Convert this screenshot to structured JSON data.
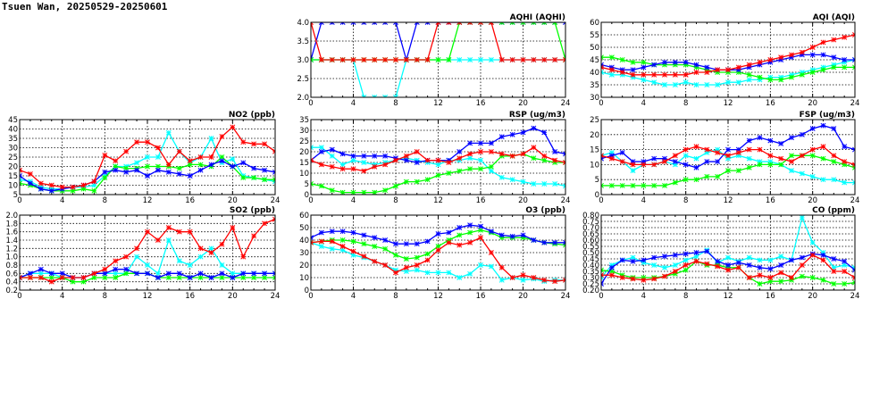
{
  "page": {
    "title": "Tsuen Wan, 20250529-20250601"
  },
  "colors": {
    "red": "#ff0000",
    "blue": "#0000ff",
    "green": "#00ff00",
    "cyan": "#00ffff",
    "grid": "#000000"
  },
  "x_ticks": [
    "0",
    "4",
    "8",
    "12",
    "16",
    "20",
    "24"
  ],
  "chart_data": [
    {
      "id": "aqhi",
      "type": "line",
      "title": "AQHI (AQHI)",
      "xlim": [
        0,
        24
      ],
      "ylim": [
        2.0,
        4.0
      ],
      "yticks": [
        "2.0",
        "2.5",
        "3.0",
        "3.5",
        "4.0"
      ],
      "ytick_values": [
        2.0,
        2.5,
        3.0,
        3.5,
        4.0
      ],
      "grid": true,
      "series": [
        {
          "color": "#00ffff",
          "values": [
            3,
            3,
            3,
            3,
            3,
            2,
            2,
            2,
            2,
            3,
            3,
            3,
            3,
            3,
            3,
            3,
            3,
            3,
            3,
            3,
            3,
            3,
            3,
            3,
            3
          ]
        },
        {
          "color": "#0000ff",
          "values": [
            3,
            4,
            4,
            4,
            4,
            4,
            4,
            4,
            4,
            3,
            4,
            4,
            4,
            4,
            4,
            4,
            4,
            4,
            4,
            4,
            4,
            4,
            4,
            4,
            4
          ]
        },
        {
          "color": "#00ff00",
          "values": [
            3,
            3,
            3,
            3,
            3,
            3,
            3,
            3,
            3,
            3,
            3,
            3,
            3,
            3,
            4,
            4,
            4,
            4,
            4,
            4,
            4,
            4,
            4,
            4,
            3
          ]
        },
        {
          "color": "#ff0000",
          "values": [
            4,
            3,
            3,
            3,
            3,
            3,
            3,
            3,
            3,
            3,
            3,
            3,
            4,
            4,
            4,
            4,
            4,
            4,
            3,
            3,
            3,
            3,
            3,
            3,
            3
          ]
        }
      ]
    },
    {
      "id": "aqi",
      "type": "line",
      "title": "AQI (AQI)",
      "xlim": [
        0,
        24
      ],
      "ylim": [
        30,
        60
      ],
      "yticks": [
        "30",
        "35",
        "40",
        "45",
        "50",
        "55",
        "60"
      ],
      "ytick_values": [
        30,
        35,
        40,
        45,
        50,
        55,
        60
      ],
      "grid": true,
      "series": [
        {
          "color": "#00ffff",
          "values": [
            40,
            39,
            39,
            38,
            37,
            36,
            35,
            35,
            36,
            35,
            35,
            35,
            36,
            36,
            37,
            37,
            38,
            38,
            39,
            40,
            41,
            42,
            43,
            44,
            45
          ]
        },
        {
          "color": "#00ff00",
          "values": [
            46,
            46,
            45,
            44,
            44,
            43,
            43,
            43,
            43,
            42,
            41,
            40,
            40,
            40,
            39,
            38,
            37,
            37,
            38,
            39,
            40,
            41,
            42,
            42,
            42
          ]
        },
        {
          "color": "#0000ff",
          "values": [
            43,
            42,
            41,
            41,
            42,
            43,
            44,
            44,
            44,
            43,
            42,
            41,
            41,
            41,
            42,
            43,
            44,
            45,
            46,
            47,
            47,
            47,
            46,
            45,
            45
          ]
        },
        {
          "color": "#ff0000",
          "values": [
            42,
            41,
            40,
            39,
            39,
            39,
            39,
            39,
            39,
            40,
            40,
            41,
            41,
            42,
            43,
            44,
            45,
            46,
            47,
            48,
            50,
            52,
            53,
            54,
            55
          ]
        }
      ]
    },
    {
      "id": "no2",
      "type": "line",
      "title": "NO2 (ppb)",
      "xlim": [
        0,
        24
      ],
      "ylim": [
        5,
        45
      ],
      "yticks": [
        "5",
        "10",
        "15",
        "20",
        "25",
        "30",
        "35",
        "40",
        "45"
      ],
      "ytick_values": [
        5,
        10,
        15,
        20,
        25,
        30,
        35,
        40,
        45
      ],
      "grid": true,
      "series": [
        {
          "color": "#00ffff",
          "values": [
            13,
            12,
            9,
            8,
            8,
            9,
            9,
            10,
            15,
            20,
            20,
            22,
            25,
            25,
            38,
            28,
            22,
            25,
            35,
            22,
            24,
            15,
            14,
            13,
            12
          ]
        },
        {
          "color": "#00ff00",
          "values": [
            11,
            10,
            8,
            7,
            7,
            7,
            8,
            7,
            14,
            20,
            19,
            19,
            20,
            20,
            20,
            19,
            21,
            21,
            20,
            25,
            20,
            14,
            14,
            13,
            13
          ]
        },
        {
          "color": "#0000ff",
          "values": [
            15,
            11,
            8,
            7,
            8,
            9,
            10,
            12,
            17,
            18,
            17,
            18,
            15,
            18,
            17,
            16,
            15,
            18,
            21,
            23,
            20,
            22,
            19,
            18,
            17
          ]
        },
        {
          "color": "#ff0000",
          "values": [
            18,
            16,
            11,
            10,
            9,
            9,
            10,
            12,
            26,
            23,
            28,
            33,
            33,
            30,
            21,
            28,
            23,
            25,
            25,
            36,
            41,
            33,
            32,
            32,
            28
          ]
        }
      ]
    },
    {
      "id": "rsp",
      "type": "line",
      "title": "RSP (ug/m3)",
      "xlim": [
        0,
        24
      ],
      "ylim": [
        0,
        35
      ],
      "yticks": [
        "0",
        "5",
        "10",
        "15",
        "20",
        "25",
        "30",
        "35"
      ],
      "ytick_values": [
        0,
        5,
        10,
        15,
        20,
        25,
        30,
        35
      ],
      "grid": true,
      "series": [
        {
          "color": "#00ffff",
          "values": [
            22,
            22,
            18,
            14,
            16,
            15,
            14,
            15,
            16,
            17,
            16,
            15,
            14,
            16,
            16,
            17,
            16,
            11,
            8,
            7,
            6,
            5,
            5,
            5,
            4
          ]
        },
        {
          "color": "#00ff00",
          "values": [
            5,
            4,
            2,
            1,
            1,
            1,
            1,
            2,
            4,
            6,
            6,
            7,
            9,
            10,
            11,
            12,
            12,
            13,
            18,
            18,
            19,
            17,
            16,
            15,
            15
          ]
        },
        {
          "color": "#0000ff",
          "values": [
            16,
            20,
            21,
            19,
            18,
            18,
            18,
            18,
            17,
            16,
            15,
            16,
            16,
            16,
            20,
            24,
            24,
            24,
            27,
            28,
            29,
            31,
            29,
            20,
            19
          ]
        },
        {
          "color": "#ff0000",
          "values": [
            16,
            14,
            13,
            12,
            12,
            11,
            13,
            14,
            16,
            18,
            20,
            16,
            16,
            15,
            17,
            19,
            20,
            20,
            19,
            18,
            19,
            22,
            18,
            16,
            15
          ]
        }
      ]
    },
    {
      "id": "fsp",
      "type": "line",
      "title": "FSP (ug/m3)",
      "xlim": [
        0,
        24
      ],
      "ylim": [
        0,
        25
      ],
      "yticks": [
        "0",
        "5",
        "10",
        "15",
        "20",
        "25"
      ],
      "ytick_values": [
        0,
        5,
        10,
        15,
        20,
        25
      ],
      "grid": true,
      "series": [
        {
          "color": "#00ffff",
          "values": [
            13,
            14,
            11,
            8,
            10,
            10,
            11,
            10,
            13,
            12,
            14,
            15,
            12,
            13,
            12,
            11,
            11,
            10,
            8,
            7,
            6,
            5,
            5,
            4,
            4
          ]
        },
        {
          "color": "#00ff00",
          "values": [
            3,
            3,
            3,
            3,
            3,
            3,
            3,
            4,
            5,
            5,
            6,
            6,
            8,
            8,
            9,
            10,
            10,
            10,
            13,
            13,
            13,
            12,
            11,
            10,
            9
          ]
        },
        {
          "color": "#0000ff",
          "values": [
            12,
            13,
            14,
            11,
            11,
            12,
            12,
            11,
            10,
            9,
            11,
            11,
            15,
            15,
            18,
            19,
            18,
            17,
            19,
            20,
            22,
            23,
            22,
            16,
            15
          ]
        },
        {
          "color": "#ff0000",
          "values": [
            13,
            12,
            11,
            10,
            10,
            10,
            11,
            13,
            15,
            16,
            15,
            14,
            13,
            14,
            15,
            15,
            13,
            12,
            11,
            13,
            15,
            16,
            13,
            11,
            10
          ]
        }
      ]
    },
    {
      "id": "so2",
      "type": "line",
      "title": "SO2 (ppb)",
      "xlim": [
        0,
        24
      ],
      "ylim": [
        0.2,
        2.0
      ],
      "yticks": [
        "0.2",
        "0.4",
        "0.6",
        "0.8",
        "1.0",
        "1.2",
        "1.4",
        "1.6",
        "1.8",
        "2.0"
      ],
      "ytick_values": [
        0.2,
        0.4,
        0.6,
        0.8,
        1.0,
        1.2,
        1.4,
        1.6,
        1.8,
        2.0
      ],
      "grid": true,
      "series": [
        {
          "color": "#00ffff",
          "values": [
            0.5,
            0.6,
            0.6,
            0.6,
            0.5,
            0.5,
            0.5,
            0.6,
            0.6,
            0.6,
            0.6,
            1.0,
            0.8,
            0.6,
            1.4,
            0.9,
            0.8,
            1.0,
            1.2,
            0.8,
            0.6,
            0.6,
            0.6,
            0.6,
            0.6
          ]
        },
        {
          "color": "#00ff00",
          "values": [
            0.5,
            0.5,
            0.5,
            0.5,
            0.5,
            0.4,
            0.4,
            0.5,
            0.5,
            0.5,
            0.6,
            0.6,
            0.6,
            0.5,
            0.5,
            0.5,
            0.5,
            0.5,
            0.5,
            0.5,
            0.5,
            0.5,
            0.5,
            0.5,
            0.5
          ]
        },
        {
          "color": "#0000ff",
          "values": [
            0.5,
            0.6,
            0.7,
            0.6,
            0.6,
            0.5,
            0.5,
            0.6,
            0.6,
            0.7,
            0.7,
            0.6,
            0.6,
            0.5,
            0.6,
            0.6,
            0.5,
            0.6,
            0.5,
            0.6,
            0.5,
            0.6,
            0.6,
            0.6,
            0.6
          ]
        },
        {
          "color": "#ff0000",
          "values": [
            0.5,
            0.5,
            0.5,
            0.4,
            0.5,
            0.5,
            0.5,
            0.6,
            0.7,
            0.9,
            1.0,
            1.2,
            1.6,
            1.4,
            1.7,
            1.6,
            1.6,
            1.2,
            1.1,
            1.3,
            1.7,
            1.0,
            1.5,
            1.8,
            1.9
          ]
        }
      ]
    },
    {
      "id": "o3",
      "type": "line",
      "title": "O3 (ppb)",
      "xlim": [
        0,
        24
      ],
      "ylim": [
        0,
        60
      ],
      "yticks": [
        "0",
        "10",
        "20",
        "30",
        "40",
        "50",
        "60"
      ],
      "ytick_values": [
        0,
        10,
        20,
        30,
        40,
        50,
        60
      ],
      "grid": true,
      "series": [
        {
          "color": "#00ffff",
          "values": [
            38,
            35,
            33,
            32,
            28,
            26,
            23,
            20,
            16,
            15,
            16,
            14,
            14,
            14,
            10,
            13,
            20,
            19,
            8,
            10,
            8,
            9,
            7,
            8,
            8
          ]
        },
        {
          "color": "#00ff00",
          "values": [
            38,
            39,
            40,
            40,
            39,
            37,
            35,
            33,
            28,
            25,
            26,
            29,
            35,
            40,
            44,
            46,
            48,
            46,
            42,
            42,
            42,
            40,
            38,
            37,
            36
          ]
        },
        {
          "color": "#0000ff",
          "values": [
            42,
            46,
            47,
            47,
            46,
            44,
            42,
            40,
            37,
            37,
            37,
            39,
            45,
            46,
            50,
            52,
            51,
            47,
            44,
            43,
            44,
            40,
            38,
            38,
            38
          ]
        },
        {
          "color": "#ff0000",
          "values": [
            38,
            39,
            39,
            35,
            31,
            27,
            23,
            20,
            14,
            18,
            20,
            24,
            32,
            38,
            36,
            38,
            42,
            30,
            18,
            10,
            12,
            10,
            8,
            7,
            8
          ]
        }
      ]
    },
    {
      "id": "co",
      "type": "line",
      "title": "CO (ppm)",
      "xlim": [
        0,
        24
      ],
      "ylim": [
        0.2,
        0.8
      ],
      "yticks": [
        "0.20",
        "0.25",
        "0.30",
        "0.35",
        "0.40",
        "0.45",
        "0.50",
        "0.55",
        "0.60",
        "0.65",
        "0.70",
        "0.75",
        "0.80"
      ],
      "ytick_values": [
        0.2,
        0.25,
        0.3,
        0.35,
        0.4,
        0.45,
        0.5,
        0.55,
        0.6,
        0.65,
        0.7,
        0.75,
        0.8
      ],
      "grid": true,
      "series": [
        {
          "color": "#00ffff",
          "values": [
            0.3,
            0.4,
            0.44,
            0.46,
            0.42,
            0.4,
            0.38,
            0.4,
            0.44,
            0.47,
            0.52,
            0.42,
            0.46,
            0.43,
            0.46,
            0.44,
            0.44,
            0.47,
            0.44,
            0.78,
            0.58,
            0.5,
            0.38,
            0.4,
            0.38
          ]
        },
        {
          "color": "#00ff00",
          "values": [
            0.36,
            0.35,
            0.32,
            0.3,
            0.3,
            0.3,
            0.31,
            0.33,
            0.36,
            0.43,
            0.4,
            0.4,
            0.38,
            0.38,
            0.3,
            0.25,
            0.27,
            0.27,
            0.28,
            0.31,
            0.3,
            0.28,
            0.25,
            0.25,
            0.26
          ]
        },
        {
          "color": "#0000ff",
          "values": [
            0.25,
            0.38,
            0.44,
            0.43,
            0.44,
            0.46,
            0.47,
            0.48,
            0.49,
            0.5,
            0.51,
            0.43,
            0.4,
            0.42,
            0.4,
            0.38,
            0.37,
            0.4,
            0.44,
            0.46,
            0.49,
            0.48,
            0.45,
            0.43,
            0.36
          ]
        },
        {
          "color": "#ff0000",
          "values": [
            0.32,
            0.32,
            0.3,
            0.29,
            0.28,
            0.29,
            0.31,
            0.35,
            0.4,
            0.43,
            0.41,
            0.39,
            0.36,
            0.38,
            0.3,
            0.32,
            0.3,
            0.34,
            0.3,
            0.4,
            0.48,
            0.44,
            0.35,
            0.35,
            0.3
          ]
        }
      ]
    }
  ]
}
